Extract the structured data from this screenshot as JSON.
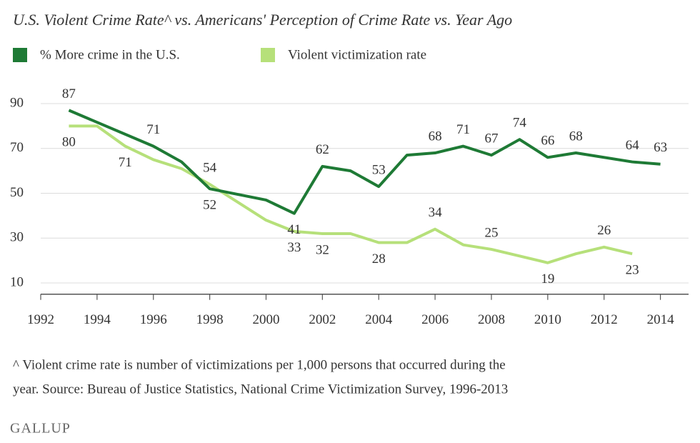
{
  "chart_data": {
    "type": "line",
    "title": "U.S. Violent Crime Rate^ vs. Americans' Perception of Crime Rate vs. Year Ago",
    "series": [
      {
        "name": "% More crime in the U.S.",
        "color": "#1e7a35",
        "x": [
          1993,
          1996,
          1997,
          1998,
          2000,
          2001,
          2002,
          2003,
          2004,
          2005,
          2006,
          2007,
          2008,
          2009,
          2010,
          2011,
          2013,
          2014
        ],
        "values": [
          87,
          71,
          64,
          52,
          47,
          41,
          62,
          60,
          53,
          67,
          68,
          71,
          67,
          74,
          66,
          68,
          64,
          63
        ],
        "value_labels": [
          "87",
          "71",
          null,
          "52",
          null,
          "41",
          "62",
          null,
          "53",
          null,
          "68",
          "71",
          "67",
          "74",
          "66",
          "68",
          "64",
          "63"
        ]
      },
      {
        "name": "Violent victimization rate",
        "color": "#b6e07a",
        "x": [
          1993,
          1994,
          1995,
          1996,
          1997,
          1998,
          1999,
          2000,
          2001,
          2002,
          2003,
          2004,
          2005,
          2006,
          2007,
          2008,
          2009,
          2010,
          2011,
          2012,
          2013
        ],
        "values": [
          80,
          80,
          71,
          65,
          61,
          54,
          46,
          38,
          33,
          32,
          32,
          28,
          28,
          34,
          27,
          25,
          22,
          19,
          23,
          26,
          23
        ],
        "value_labels": [
          "80",
          null,
          "71",
          null,
          null,
          "54",
          null,
          null,
          "33",
          "32",
          null,
          "28",
          null,
          "34",
          null,
          "25",
          null,
          "19",
          null,
          "26",
          "23"
        ]
      }
    ],
    "xlim": [
      1992,
      2015
    ],
    "xticks": [
      1992,
      1994,
      1996,
      1998,
      2000,
      2002,
      2004,
      2006,
      2008,
      2010,
      2012,
      2014
    ],
    "ylim": [
      5,
      100
    ],
    "yticks": [
      10,
      30,
      50,
      70,
      90
    ],
    "grid": true,
    "notes": [
      "^ Violent crime rate is number of victimizations per 1,000 persons that occurred during the",
      "year. Source: Bureau of Justice Statistics, National Crime Victimization Survey, 1996-2013"
    ],
    "brand": "GALLUP"
  }
}
